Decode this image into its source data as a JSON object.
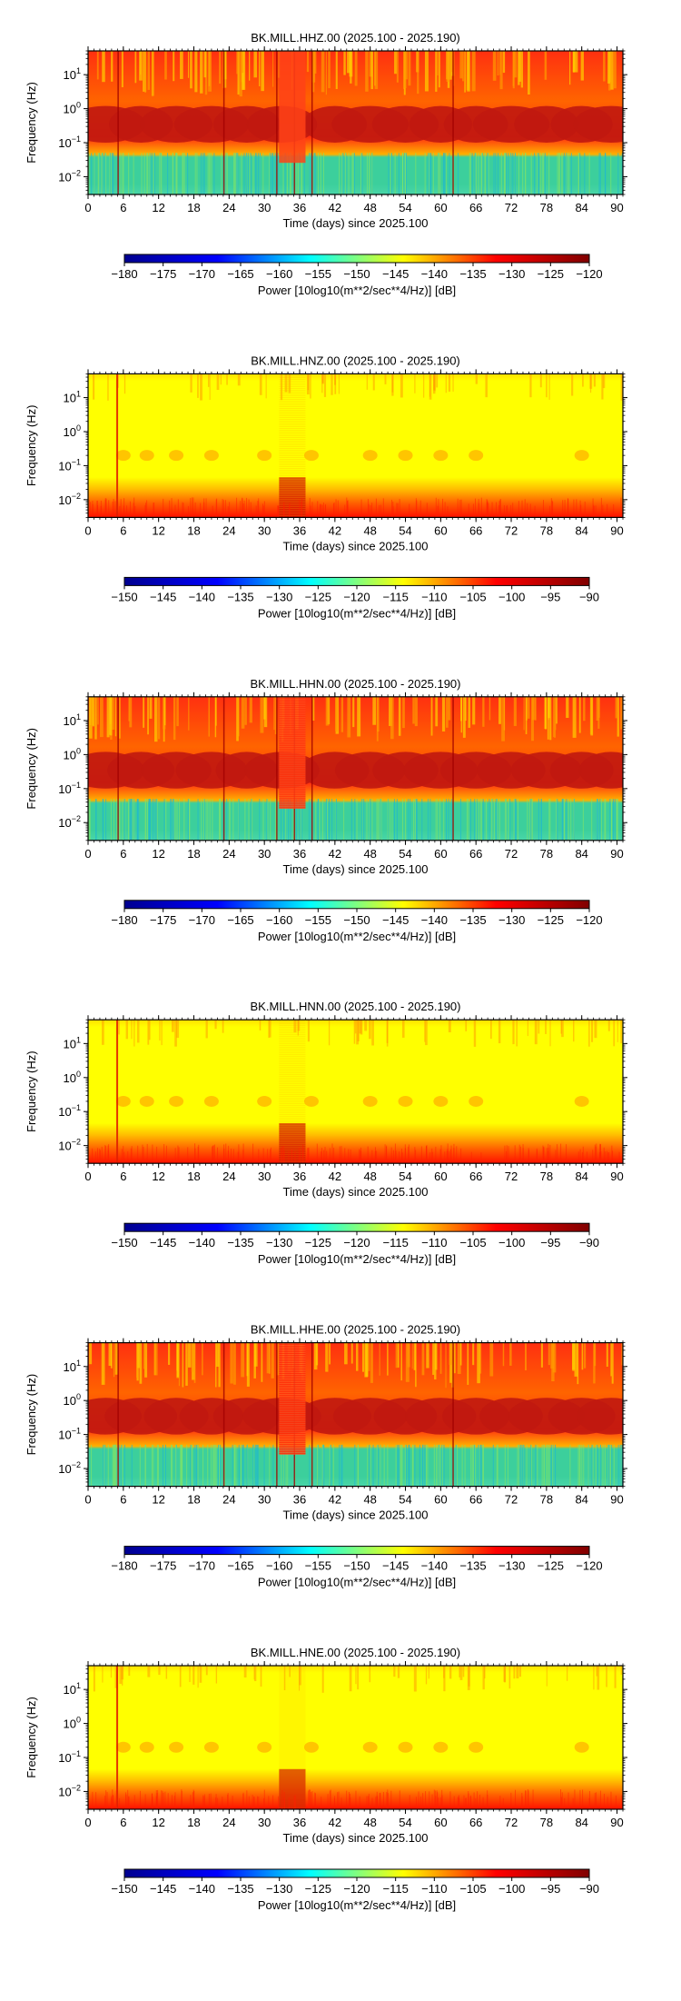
{
  "chart_data": [
    {
      "type": "heatmap",
      "title": "BK.MILL.HHZ.00 (2025.100 - 2025.190)",
      "xlabel": "Time (days) since 2025.100",
      "ylabel": "Frequency (Hz)",
      "xlim": [
        0,
        91
      ],
      "ylim": [
        0.003,
        50
      ],
      "yscale": "log",
      "xticks": [
        "0",
        "6",
        "12",
        "18",
        "24",
        "30",
        "36",
        "42",
        "48",
        "54",
        "60",
        "66",
        "72",
        "78",
        "84",
        "90"
      ],
      "yticks": [
        "10^-2",
        "10^-1",
        "10^0",
        "10^1"
      ],
      "colorbar": {
        "label": "Power [10log10(m**2/sec**4/Hz)] [dB]",
        "range": [
          -180,
          -120
        ],
        "ticks": [
          "−180",
          "−175",
          "−170",
          "−165",
          "−160",
          "−155",
          "−150",
          "−145",
          "−140",
          "−135",
          "−130",
          "−125",
          "−120"
        ],
        "colormap": "jet"
      }
    },
    {
      "type": "heatmap",
      "title": "BK.MILL.HNZ.00 (2025.100 - 2025.190)",
      "xlabel": "Time (days) since 2025.100",
      "ylabel": "Frequency (Hz)",
      "xlim": [
        0,
        91
      ],
      "ylim": [
        0.003,
        50
      ],
      "yscale": "log",
      "xticks": [
        "0",
        "6",
        "12",
        "18",
        "24",
        "30",
        "36",
        "42",
        "48",
        "54",
        "60",
        "66",
        "72",
        "78",
        "84",
        "90"
      ],
      "yticks": [
        "10^-2",
        "10^-1",
        "10^0",
        "10^1"
      ],
      "colorbar": {
        "label": "Power [10log10(m**2/sec**4/Hz)] [dB]",
        "range": [
          -150,
          -90
        ],
        "ticks": [
          "−150",
          "−145",
          "−140",
          "−135",
          "−130",
          "−125",
          "−120",
          "−115",
          "−110",
          "−105",
          "−100",
          "−95",
          "−90"
        ],
        "colormap": "jet"
      }
    },
    {
      "type": "heatmap",
      "title": "BK.MILL.HHN.00 (2025.100 - 2025.190)",
      "xlabel": "Time (days) since 2025.100",
      "ylabel": "Frequency (Hz)",
      "xlim": [
        0,
        91
      ],
      "ylim": [
        0.003,
        50
      ],
      "yscale": "log",
      "xticks": [
        "0",
        "6",
        "12",
        "18",
        "24",
        "30",
        "36",
        "42",
        "48",
        "54",
        "60",
        "66",
        "72",
        "78",
        "84",
        "90"
      ],
      "yticks": [
        "10^-2",
        "10^-1",
        "10^0",
        "10^1"
      ],
      "colorbar": {
        "label": "Power [10log10(m**2/sec**4/Hz)] [dB]",
        "range": [
          -180,
          -120
        ],
        "ticks": [
          "−180",
          "−175",
          "−170",
          "−165",
          "−160",
          "−155",
          "−150",
          "−145",
          "−140",
          "−135",
          "−130",
          "−125",
          "−120"
        ],
        "colormap": "jet"
      }
    },
    {
      "type": "heatmap",
      "title": "BK.MILL.HNN.00 (2025.100 - 2025.190)",
      "xlabel": "Time (days) since 2025.100",
      "ylabel": "Frequency (Hz)",
      "xlim": [
        0,
        91
      ],
      "ylim": [
        0.003,
        50
      ],
      "yscale": "log",
      "xticks": [
        "0",
        "6",
        "12",
        "18",
        "24",
        "30",
        "36",
        "42",
        "48",
        "54",
        "60",
        "66",
        "72",
        "78",
        "84",
        "90"
      ],
      "yticks": [
        "10^-2",
        "10^-1",
        "10^0",
        "10^1"
      ],
      "colorbar": {
        "label": "Power [10log10(m**2/sec**4/Hz)] [dB]",
        "range": [
          -150,
          -90
        ],
        "ticks": [
          "−150",
          "−145",
          "−140",
          "−135",
          "−130",
          "−125",
          "−120",
          "−115",
          "−110",
          "−105",
          "−100",
          "−95",
          "−90"
        ],
        "colormap": "jet"
      }
    },
    {
      "type": "heatmap",
      "title": "BK.MILL.HHE.00 (2025.100 - 2025.190)",
      "xlabel": "Time (days) since 2025.100",
      "ylabel": "Frequency (Hz)",
      "xlim": [
        0,
        91
      ],
      "ylim": [
        0.003,
        50
      ],
      "yscale": "log",
      "xticks": [
        "0",
        "6",
        "12",
        "18",
        "24",
        "30",
        "36",
        "42",
        "48",
        "54",
        "60",
        "66",
        "72",
        "78",
        "84",
        "90"
      ],
      "yticks": [
        "10^-2",
        "10^-1",
        "10^0",
        "10^1"
      ],
      "colorbar": {
        "label": "Power [10log10(m**2/sec**4/Hz)] [dB]",
        "range": [
          -180,
          -120
        ],
        "ticks": [
          "−180",
          "−175",
          "−170",
          "−165",
          "−160",
          "−155",
          "−150",
          "−145",
          "−140",
          "−135",
          "−130",
          "−125",
          "−120"
        ],
        "colormap": "jet"
      }
    },
    {
      "type": "heatmap",
      "title": "BK.MILL.HNE.00 (2025.100 - 2025.190)",
      "xlabel": "Time (days) since 2025.100",
      "ylabel": "Frequency (Hz)",
      "xlim": [
        0,
        91
      ],
      "ylim": [
        0.003,
        50
      ],
      "yscale": "log",
      "xticks": [
        "0",
        "6",
        "12",
        "18",
        "24",
        "30",
        "36",
        "42",
        "48",
        "54",
        "60",
        "66",
        "72",
        "78",
        "84",
        "90"
      ],
      "yticks": [
        "10^-2",
        "10^-1",
        "10^0",
        "10^1"
      ],
      "colorbar": {
        "label": "Power [10log10(m**2/sec**4/Hz)] [dB]",
        "range": [
          -150,
          -90
        ],
        "ticks": [
          "−150",
          "−145",
          "−140",
          "−135",
          "−130",
          "−125",
          "−120",
          "−115",
          "−110",
          "−105",
          "−100",
          "−95",
          "−90"
        ],
        "colormap": "jet"
      }
    }
  ],
  "colors": {
    "jet_stops": [
      "#00008f",
      "#0000ff",
      "#00ffff",
      "#ffff00",
      "#ff0000",
      "#800000"
    ],
    "hh_band_low": "#3ccf9c",
    "hh_band_mid": "#ff6400",
    "hh_band_high": "#ff3010",
    "hh_microseism": "#c01810",
    "hn_base": "#ffff00",
    "hn_bottom": "#ff1000",
    "hn_streak": "#ff9600"
  }
}
